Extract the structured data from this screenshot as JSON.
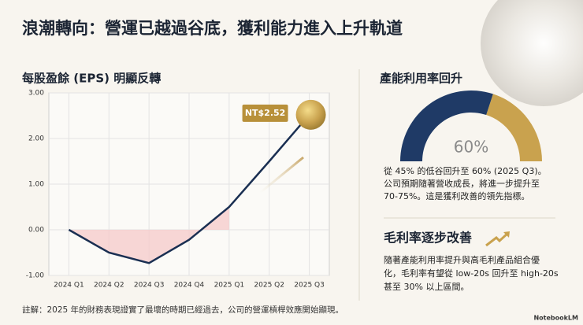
{
  "title": "浪潮轉向：營運已越過谷底，獲利能力進入上升軌道",
  "chart_data": [
    {
      "type": "line",
      "title": "每股盈餘 (EPS) 明顯反轉",
      "categories": [
        "2024 Q1",
        "2024 Q2",
        "2024 Q3",
        "2024 Q4",
        "2025 Q1",
        "2025 Q2",
        "2025 Q3"
      ],
      "values": [
        0,
        -0.5,
        -0.73,
        -0.22,
        0.5,
        1.5,
        2.52
      ],
      "value_labels": [
        null,
        null,
        null,
        null,
        null,
        null,
        "NT$2.52"
      ],
      "color": "#1a2f52",
      "ylim": [
        -1,
        3
      ],
      "yticks": [
        {
          "value": 3,
          "label": "3.00"
        },
        {
          "value": 2,
          "label": "2.00"
        },
        {
          "value": 1,
          "label": "1.00"
        },
        {
          "value": 0,
          "label": "0.00"
        },
        {
          "value": -1,
          "label": "-1.00"
        }
      ],
      "grid": true
    },
    {
      "type": "gauge",
      "title": "產能利用率回升",
      "value": 60,
      "value_label": "60%",
      "ylim": [
        0,
        100
      ],
      "color": "#1f3a66",
      "rest_color": "#c9a24e",
      "text_lines": [
        "從 45% 的低谷回升至 60% (2025 Q3)。",
        "公司預期隨著營收成長，將進一步提升至",
        "70-75%。這是獲利改善的領先指標。"
      ]
    }
  ],
  "margin_section": {
    "title": "毛利率逐步改善",
    "text_lines": [
      "隨著產能利用率提升與高毛利產品組合優",
      "化，毛利率有望從 low-20s 回升至 high-20s",
      "甚至 30% 以上區間。"
    ]
  },
  "footnote": "註解：2025 年的財務表現證實了最壞的時期已經過去，公司的營運槓桿效應開始顯現。",
  "brand": "NotebookLM"
}
